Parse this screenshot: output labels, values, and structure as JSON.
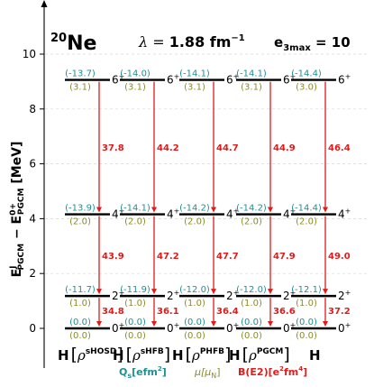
{
  "header": {
    "nucleus_mass": "20",
    "nucleus": "Ne",
    "lambda_prefix": "λ = ",
    "lambda_value": "1.88 fm",
    "lambda_exp": "−1",
    "emax_prefix": "e",
    "emax_sub": "3max",
    "emax_value": " = 10"
  },
  "legend": {
    "q": "Q",
    "q_sub": "s",
    "q_unit": "[efm",
    "q_unit_exp": "2",
    "q_close": "]",
    "mu": "μ[μ",
    "mu_sub": "N",
    "mu_close": "]",
    "be2": "B(E2)[e",
    "be2_exp1": "2",
    "be2_mid": "fm",
    "be2_exp2": "4",
    "be2_close": "]"
  },
  "colors": {
    "q": "#1f8f92",
    "mu": "#8b8b2a",
    "be2": "#e01b1b"
  },
  "chart_data": {
    "type": "level_scheme",
    "ylabel": "E^J_PGCM − E^0+_PGCM [MeV]",
    "ylim": [
      -0.3,
      11.2
    ],
    "yticks": [
      0,
      2,
      4,
      6,
      8,
      10
    ],
    "grid": true,
    "columns": [
      {
        "label": "H",
        "rho": "ρ",
        "rho_sup": "sHOSD",
        "levels": [
          {
            "J": "0",
            "E": 0.0,
            "Q": "(0.0)",
            "mu": "(0.0)"
          },
          {
            "J": "2",
            "E": 1.18,
            "Q": "(-11.7)",
            "mu": "(1.0)"
          },
          {
            "J": "4",
            "E": 4.16,
            "Q": "(-13.9)",
            "mu": "(2.0)"
          },
          {
            "J": "6",
            "E": 9.06,
            "Q": "(-13.7)",
            "mu": "(3.1)"
          }
        ],
        "BE2": [
          "34.8",
          "43.9",
          "37.8"
        ]
      },
      {
        "label": "H",
        "rho": "ρ",
        "rho_sup": "sHFB",
        "levels": [
          {
            "J": "0",
            "E": 0.0,
            "Q": "(0.0)",
            "mu": "(0.0)"
          },
          {
            "J": "2",
            "E": 1.18,
            "Q": "(-11.9)",
            "mu": "(1.0)"
          },
          {
            "J": "4",
            "E": 4.16,
            "Q": "(-14.1)",
            "mu": "(2.0)"
          },
          {
            "J": "6",
            "E": 9.06,
            "Q": "(-14.0)",
            "mu": "(3.1)"
          }
        ],
        "BE2": [
          "36.1",
          "47.2",
          "44.2"
        ]
      },
      {
        "label": "H",
        "rho": "ρ",
        "rho_sup": "PHFB",
        "levels": [
          {
            "J": "0",
            "E": 0.0,
            "Q": "(0.0)",
            "mu": "(0.0)"
          },
          {
            "J": "2",
            "E": 1.18,
            "Q": "(-12.0)",
            "mu": "(1.0)"
          },
          {
            "J": "4",
            "E": 4.16,
            "Q": "(-14.2)",
            "mu": "(2.0)"
          },
          {
            "J": "6",
            "E": 9.06,
            "Q": "(-14.1)",
            "mu": "(3.1)"
          }
        ],
        "BE2": [
          "36.4",
          "47.7",
          "44.7"
        ]
      },
      {
        "label": "H",
        "rho": "ρ",
        "rho_sup": "PGCM",
        "levels": [
          {
            "J": "0",
            "E": 0.0,
            "Q": "(0.0)",
            "mu": "(0.0)"
          },
          {
            "J": "2",
            "E": 1.18,
            "Q": "(-12.0)",
            "mu": "(1.0)"
          },
          {
            "J": "4",
            "E": 4.16,
            "Q": "(-14.2)",
            "mu": "(2.0)"
          },
          {
            "J": "6",
            "E": 9.06,
            "Q": "(-14.1)",
            "mu": "(3.1)"
          }
        ],
        "BE2": [
          "36.6",
          "47.9",
          "44.9"
        ]
      },
      {
        "label": "H",
        "rho": "",
        "rho_sup": "",
        "levels": [
          {
            "J": "0",
            "E": 0.0,
            "Q": "(0.0)",
            "mu": "(0.0)"
          },
          {
            "J": "2",
            "E": 1.18,
            "Q": "(-12.1)",
            "mu": "(1.0)"
          },
          {
            "J": "4",
            "E": 4.16,
            "Q": "(-14.4)",
            "mu": "(2.0)"
          },
          {
            "J": "6",
            "E": 9.06,
            "Q": "(-14.4)",
            "mu": "(3.0)"
          }
        ],
        "BE2": [
          "37.2",
          "49.0",
          "46.4"
        ]
      }
    ]
  }
}
